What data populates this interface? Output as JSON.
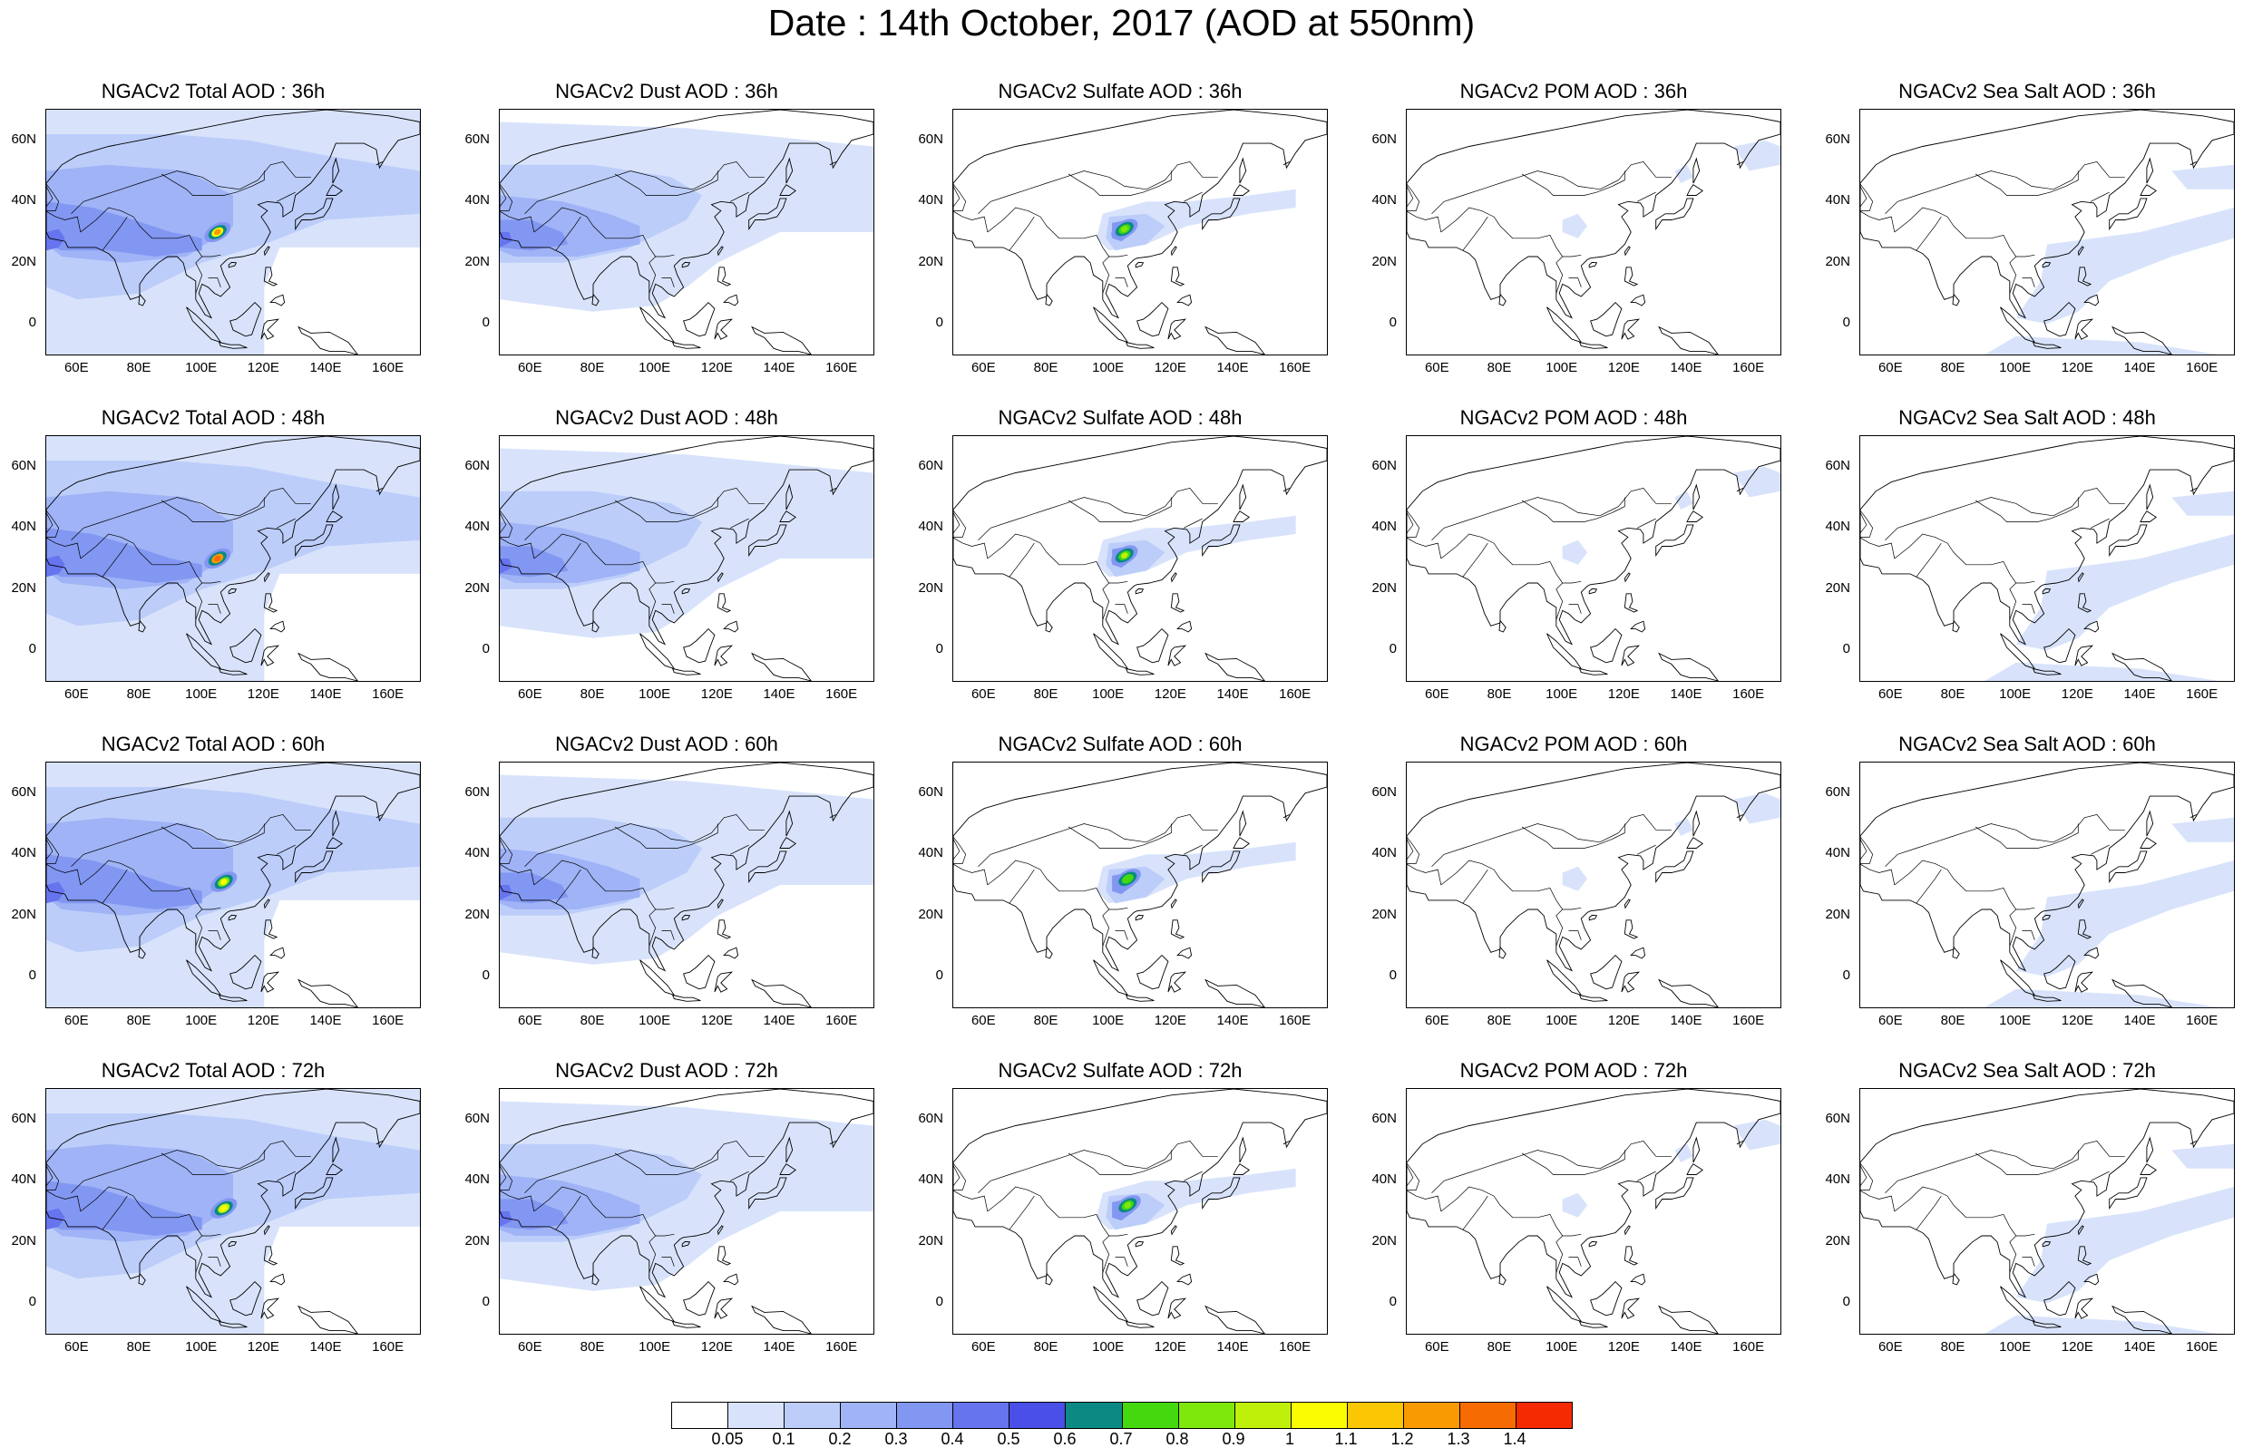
{
  "title": "Date : 14th October, 2017 (AOD at 550nm)",
  "map_axes": {
    "lat_ticks": [
      "60N",
      "40N",
      "20N",
      "0"
    ],
    "lon_ticks": [
      "60E",
      "80E",
      "100E",
      "120E",
      "140E",
      "160E"
    ],
    "lon_range": [
      50,
      170
    ],
    "lat_range": [
      -10,
      70
    ]
  },
  "species": [
    {
      "key": "total",
      "name": "Total"
    },
    {
      "key": "dust",
      "name": "Dust"
    },
    {
      "key": "sulfate",
      "name": "Sulfate"
    },
    {
      "key": "pom",
      "name": "POM"
    },
    {
      "key": "seasalt",
      "name": "Sea Salt"
    }
  ],
  "lead_times": [
    "36h",
    "48h",
    "60h",
    "72h"
  ],
  "panels": [
    [
      "NGACv2 Total AOD : 36h",
      "NGACv2 Dust AOD : 36h",
      "NGACv2 Sulfate AOD : 36h",
      "NGACv2 POM AOD : 36h",
      "NGACv2 Sea Salt AOD : 36h"
    ],
    [
      "NGACv2 Total AOD : 48h",
      "NGACv2 Dust AOD : 48h",
      "NGACv2 Sulfate AOD : 48h",
      "NGACv2 POM AOD : 48h",
      "NGACv2 Sea Salt AOD : 48h"
    ],
    [
      "NGACv2 Total AOD : 60h",
      "NGACv2 Dust AOD : 60h",
      "NGACv2 Sulfate AOD : 60h",
      "NGACv2 POM AOD : 60h",
      "NGACv2 Sea Salt AOD : 60h"
    ],
    [
      "NGACv2 Total AOD : 72h",
      "NGACv2 Dust AOD : 72h",
      "NGACv2 Sulfate AOD : 72h",
      "NGACv2 POM AOD : 72h",
      "NGACv2 Sea Salt  AOD : 72h"
    ]
  ],
  "colorbar": {
    "labels": [
      "0.05",
      "0.1",
      "0.2",
      "0.3",
      "0.4",
      "0.5",
      "0.6",
      "0.7",
      "0.8",
      "0.9",
      "1",
      "1.1",
      "1.2",
      "1.3",
      "1.4"
    ],
    "colors": [
      "#ffffff",
      "#d8e3fb",
      "#bccdfa",
      "#9fb3f6",
      "#8297f2",
      "#6674ee",
      "#4a4fe8",
      "#0b8a84",
      "#45d80e",
      "#7ee80c",
      "#bff00a",
      "#fbfb02",
      "#fbc603",
      "#f99a03",
      "#f76c02",
      "#f52a02"
    ]
  },
  "map_features": {
    "hotspots": [
      {
        "panel": "total-36h",
        "lon": 105,
        "lat": 30,
        "level": "1.1-1.3"
      },
      {
        "panel": "total-48h",
        "lon": 105,
        "lat": 30,
        "level": "1.3-1.4"
      },
      {
        "panel": "total-60h",
        "lon": 107,
        "lat": 31,
        "level": "0.9-1.1"
      },
      {
        "panel": "total-72h",
        "lon": 107,
        "lat": 31,
        "level": "1.0-1.1"
      },
      {
        "panel": "sulfate-36h",
        "lon": 105,
        "lat": 31,
        "level": "0.7-0.9"
      },
      {
        "panel": "sulfate-48h",
        "lon": 105,
        "lat": 31,
        "level": "0.8-1.0"
      },
      {
        "panel": "sulfate-60h",
        "lon": 106,
        "lat": 32,
        "level": "0.7-0.8"
      },
      {
        "panel": "sulfate-72h",
        "lon": 106,
        "lat": 32,
        "level": "0.8-0.9"
      }
    ]
  }
}
